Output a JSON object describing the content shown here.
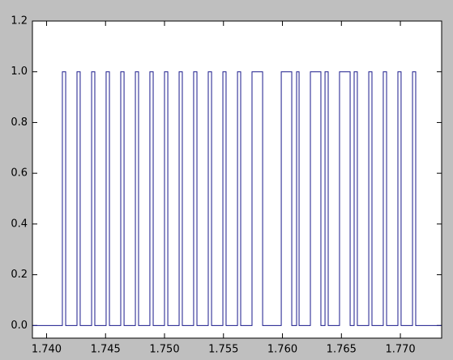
{
  "chart_data": {
    "type": "step",
    "x": [
      1.7388,
      1.74134,
      1.74162,
      1.74258,
      1.74285,
      1.74382,
      1.74409,
      1.74505,
      1.74533,
      1.74629,
      1.74657,
      1.74753,
      1.7478,
      1.74876,
      1.74904,
      1.75,
      1.75028,
      1.75124,
      1.75151,
      1.75247,
      1.75275,
      1.75371,
      1.75399,
      1.75495,
      1.75522,
      1.75619,
      1.75646,
      1.75742,
      1.75832,
      1.7599,
      1.76079,
      1.7612,
      1.76141,
      1.76237,
      1.76326,
      1.76361,
      1.76388,
      1.76484,
      1.76574,
      1.76608,
      1.76635,
      1.76732,
      1.76759,
      1.76855,
      1.76883,
      1.76979,
      1.77006,
      1.77103,
      1.7713,
      1.7735
    ],
    "series": [
      {
        "color": "#1a1a8c",
        "values": [
          0,
          1,
          0,
          1,
          0,
          1,
          0,
          1,
          0,
          1,
          0,
          1,
          0,
          1,
          0,
          1,
          0,
          1,
          0,
          1,
          0,
          1,
          0,
          1,
          0,
          1,
          0,
          1,
          0,
          1,
          0,
          1,
          0,
          1,
          0,
          1,
          0,
          1,
          0,
          1,
          0,
          1,
          0,
          1,
          0,
          1,
          0,
          1,
          0,
          0
        ]
      }
    ],
    "xlim": [
      1.7388,
      1.7735
    ],
    "xticks": [
      {
        "value": 1.74,
        "label": "1.740"
      },
      {
        "value": 1.745,
        "label": "1.745"
      },
      {
        "value": 1.75,
        "label": "1.750"
      },
      {
        "value": 1.755,
        "label": "1.755"
      },
      {
        "value": 1.76,
        "label": "1.760"
      },
      {
        "value": 1.765,
        "label": "1.765"
      },
      {
        "value": 1.77,
        "label": "1.770"
      }
    ],
    "ylim": [
      -0.05,
      1.2
    ],
    "yticks": [
      {
        "value": 0,
        "label": "0.0"
      },
      {
        "value": 0.2,
        "label": "0.2"
      },
      {
        "value": 0.4,
        "label": "0.4"
      },
      {
        "value": 0.6,
        "label": "0.6"
      },
      {
        "value": 0.8,
        "label": "0.8"
      },
      {
        "value": 1,
        "label": "1.0"
      },
      {
        "value": 1.2,
        "label": "1.2"
      }
    ],
    "grid": false
  }
}
